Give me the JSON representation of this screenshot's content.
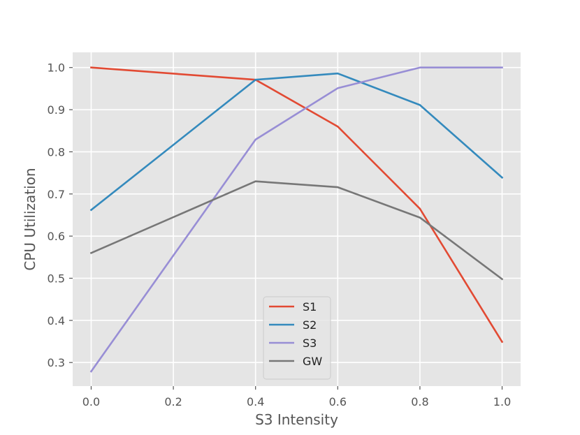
{
  "chart_data": {
    "type": "line",
    "title": "",
    "xlabel": "S3 Intensity",
    "ylabel": "CPU Utilization",
    "x": [
      0.0,
      0.4,
      0.6,
      0.8,
      1.0
    ],
    "xlim": [
      -0.045,
      1.045
    ],
    "ylim": [
      0.244,
      1.036
    ],
    "xticks": [
      0.0,
      0.2,
      0.4,
      0.6,
      0.8,
      1.0
    ],
    "xtick_labels": [
      "0.0",
      "0.2",
      "0.4",
      "0.6",
      "0.8",
      "1.0"
    ],
    "yticks": [
      0.3,
      0.4,
      0.5,
      0.6,
      0.7,
      0.8,
      0.9,
      1.0
    ],
    "ytick_labels": [
      "0.3",
      "0.4",
      "0.5",
      "0.6",
      "0.7",
      "0.8",
      "0.9",
      "1.0"
    ],
    "grid": true,
    "legend_position": "bottom-center",
    "series": [
      {
        "name": "S1",
        "color": "#e24a33",
        "values": [
          1.0,
          0.971,
          0.86,
          0.665,
          0.349
        ]
      },
      {
        "name": "S2",
        "color": "#348abd",
        "values": [
          0.662,
          0.971,
          0.986,
          0.911,
          0.739
        ]
      },
      {
        "name": "S3",
        "color": "#988ed5",
        "values": [
          0.279,
          0.829,
          0.951,
          1.0,
          1.0
        ]
      },
      {
        "name": "GW",
        "color": "#777777",
        "values": [
          0.56,
          0.73,
          0.716,
          0.644,
          0.498
        ]
      }
    ],
    "colors": {
      "background": "#e5e5e5",
      "grid": "#ffffff",
      "tick_text": "#555555",
      "axis_label": "#555555",
      "legend_frame": "#cccccc"
    }
  }
}
